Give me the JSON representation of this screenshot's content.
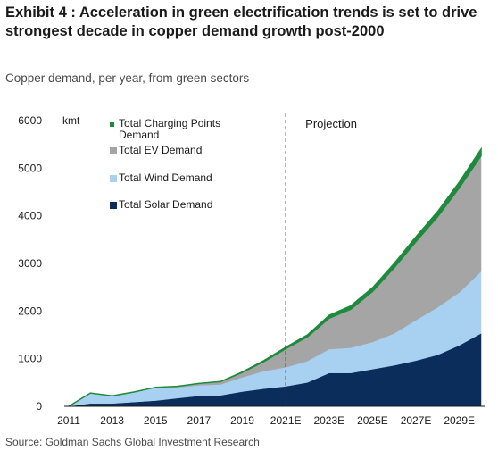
{
  "header": {
    "title": "Exhibit 4 : Acceleration in green electrification trends is set to drive strongest decade in copper demand growth post-2000",
    "subtitle": "Copper demand, per year, from green sectors",
    "source": "Source: Goldman Sachs Global Investment Research"
  },
  "chart_data": {
    "type": "area",
    "stacked": true,
    "x": [
      2011,
      2012,
      2013,
      2014,
      2015,
      2016,
      2017,
      2018,
      2019,
      2020,
      2021,
      2022,
      2023,
      2024,
      2025,
      2026,
      2027,
      2028,
      2029,
      2030
    ],
    "x_tick_labels": [
      "2011",
      "2013",
      "2015",
      "2017",
      "2019",
      "2021E",
      "2023E",
      "2025E",
      "2027E",
      "2029E"
    ],
    "x_tick_values": [
      2011,
      2013,
      2015,
      2017,
      2019,
      2021,
      2023,
      2025,
      2027,
      2029
    ],
    "ylabel": "kmt",
    "ylim": [
      0,
      6000
    ],
    "y_ticks": [
      0,
      1000,
      2000,
      3000,
      4000,
      5000,
      6000
    ],
    "projection_start": 2021,
    "projection_label": "Projection",
    "legend_position": "top-left",
    "series": [
      {
        "name": "Total Solar Demand",
        "color": "#0b2d5b",
        "values": [
          0,
          60,
          60,
          90,
          120,
          170,
          220,
          230,
          310,
          370,
          420,
          500,
          700,
          700,
          780,
          860,
          960,
          1080,
          1280,
          1530
        ]
      },
      {
        "name": "Total Wind Demand",
        "color": "#a8d1f1",
        "values": [
          0,
          220,
          160,
          200,
          270,
          230,
          220,
          230,
          300,
          370,
          400,
          450,
          500,
          530,
          570,
          670,
          850,
          1000,
          1110,
          1300
        ]
      },
      {
        "name": "Total EV Demand",
        "color": "#a5a5a5",
        "values": [
          0,
          0,
          0,
          10,
          10,
          20,
          40,
          60,
          100,
          200,
          390,
          510,
          650,
          810,
          1060,
          1380,
          1650,
          1900,
          2200,
          2430
        ]
      },
      {
        "name": "Total Charging Points Demand",
        "color": "#1e8a3c",
        "values": [
          0,
          0,
          0,
          0,
          0,
          0,
          0,
          0,
          10,
          20,
          30,
          40,
          60,
          70,
          80,
          90,
          100,
          110,
          120,
          140
        ]
      }
    ],
    "legend_order": [
      "Total Charging Points Demand",
      "Total EV Demand",
      "Total Wind Demand",
      "Total Solar Demand"
    ]
  }
}
